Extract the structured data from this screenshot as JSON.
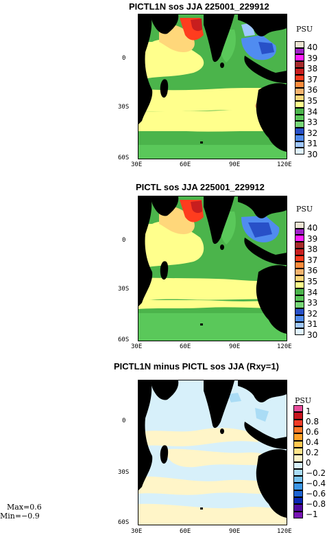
{
  "panels": [
    {
      "title": "PICTL1N sos JJA 225001_229912",
      "unit": "PSU",
      "legend": [
        "40",
        "39",
        "38",
        "37",
        "36",
        "35",
        "34",
        "33",
        "32",
        "31",
        "30"
      ],
      "colors": [
        "#ece4d2",
        "#a020c8",
        "#ff20ff",
        "#a52a2a",
        "#c81e1e",
        "#ff3c1e",
        "#ff8c3c",
        "#f5b46e",
        "#ffd77a",
        "#ffff8c",
        "#4bb44b",
        "#5ac85a",
        "#78d778",
        "#2850c8",
        "#508cf0",
        "#a0c8ff",
        "#e0f4ff"
      ]
    },
    {
      "title": "PICTL sos JJA 225001_229912",
      "unit": "PSU",
      "legend": [
        "40",
        "39",
        "38",
        "37",
        "36",
        "35",
        "34",
        "33",
        "32",
        "31",
        "30"
      ],
      "colors": [
        "#ece4d2",
        "#a020c8",
        "#ff20ff",
        "#a52a2a",
        "#c81e1e",
        "#ff3c1e",
        "#ff8c3c",
        "#f5b46e",
        "#ffd77a",
        "#ffff8c",
        "#4bb44b",
        "#5ac85a",
        "#78d778",
        "#2850c8",
        "#508cf0",
        "#a0c8ff",
        "#e0f4ff"
      ]
    },
    {
      "title": "PICTL1N minus PICTL sos JJA (Rxy=1)",
      "unit": "PSU",
      "legend": [
        "1",
        "0.8",
        "0.6",
        "0.4",
        "0.2",
        "0",
        "−0.2",
        "−0.4",
        "−0.6",
        "−0.8",
        "−1"
      ],
      "colors": [
        "#e84d9c",
        "#c8141e",
        "#f03c28",
        "#ff7828",
        "#ffa028",
        "#ffc850",
        "#ffe68c",
        "#fff5c8",
        "#d7f0fa",
        "#aadcf5",
        "#78c3f0",
        "#3c96e6",
        "#1e64d2",
        "#0a28b4",
        "#500aa0",
        "#7814b4"
      ]
    }
  ],
  "axes": {
    "lon_ticks": [
      "30E",
      "60E",
      "90E",
      "120E"
    ],
    "lat_ticks": [
      "0",
      "30S",
      "60S"
    ]
  },
  "stats": {
    "max": "Max=0.6",
    "min": "Min=−0.9"
  }
}
